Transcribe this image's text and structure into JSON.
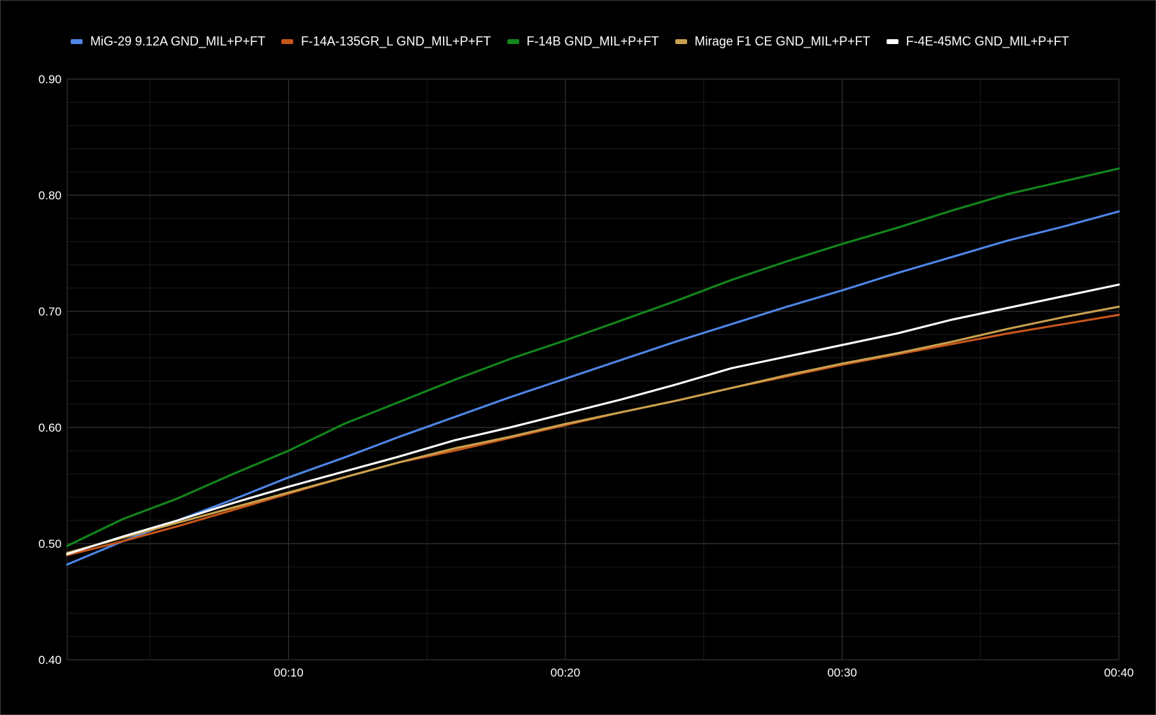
{
  "chart_data": {
    "type": "line",
    "title": "",
    "xlabel": "",
    "ylabel": "",
    "x_unit": "seconds",
    "xlim": [
      2,
      40
    ],
    "ylim": [
      0.4,
      0.9
    ],
    "x_ticks": [
      10,
      20,
      30,
      40
    ],
    "x_tick_labels": [
      "00:10",
      "00:20",
      "00:30",
      "00:40"
    ],
    "y_ticks": [
      0.4,
      0.5,
      0.6,
      0.7,
      0.8,
      0.9
    ],
    "y_tick_labels": [
      "0.40",
      "0.50",
      "0.60",
      "0.70",
      "0.80",
      "0.90"
    ],
    "grid": true,
    "legend_position": "top",
    "background": "#000000",
    "x": [
      2,
      4,
      6,
      8,
      10,
      12,
      14,
      16,
      18,
      20,
      22,
      24,
      26,
      28,
      30,
      32,
      34,
      36,
      38,
      40
    ],
    "series": [
      {
        "name": "MiG-29 9.12A GND_MIL+P+FT",
        "color": "#4f86e8",
        "values": [
          0.482,
          0.502,
          0.52,
          0.538,
          0.557,
          0.574,
          0.592,
          0.609,
          0.626,
          0.642,
          0.658,
          0.674,
          0.689,
          0.704,
          0.718,
          0.733,
          0.747,
          0.761,
          0.773,
          0.786
        ]
      },
      {
        "name": "F-14A-135GR_L GND_MIL+P+FT",
        "color": "#c8561a",
        "values": [
          0.49,
          0.502,
          0.515,
          0.529,
          0.543,
          0.557,
          0.57,
          0.58,
          0.591,
          0.602,
          0.613,
          0.623,
          0.634,
          0.644,
          0.654,
          0.663,
          0.672,
          0.681,
          0.689,
          0.697
        ]
      },
      {
        "name": "F-14B GND_MIL+P+FT",
        "color": "#12871c",
        "values": [
          0.498,
          0.521,
          0.539,
          0.56,
          0.58,
          0.603,
          0.622,
          0.641,
          0.659,
          0.675,
          0.692,
          0.709,
          0.727,
          0.743,
          0.758,
          0.772,
          0.787,
          0.801,
          0.812,
          0.823
        ]
      },
      {
        "name": "Mirage F1 CE GND_MIL+P+FT",
        "color": "#c9a14e",
        "values": [
          0.492,
          0.505,
          0.518,
          0.531,
          0.544,
          0.557,
          0.57,
          0.582,
          0.592,
          0.603,
          0.613,
          0.623,
          0.634,
          0.645,
          0.655,
          0.664,
          0.674,
          0.685,
          0.695,
          0.704
        ]
      },
      {
        "name": "F-4E-45MC GND_MIL+P+FT",
        "color": "#ffffff",
        "values": [
          0.491,
          0.506,
          0.52,
          0.535,
          0.549,
          0.562,
          0.575,
          0.589,
          0.6,
          0.612,
          0.624,
          0.637,
          0.651,
          0.661,
          0.671,
          0.681,
          0.693,
          0.703,
          0.713,
          0.723
        ]
      }
    ]
  }
}
